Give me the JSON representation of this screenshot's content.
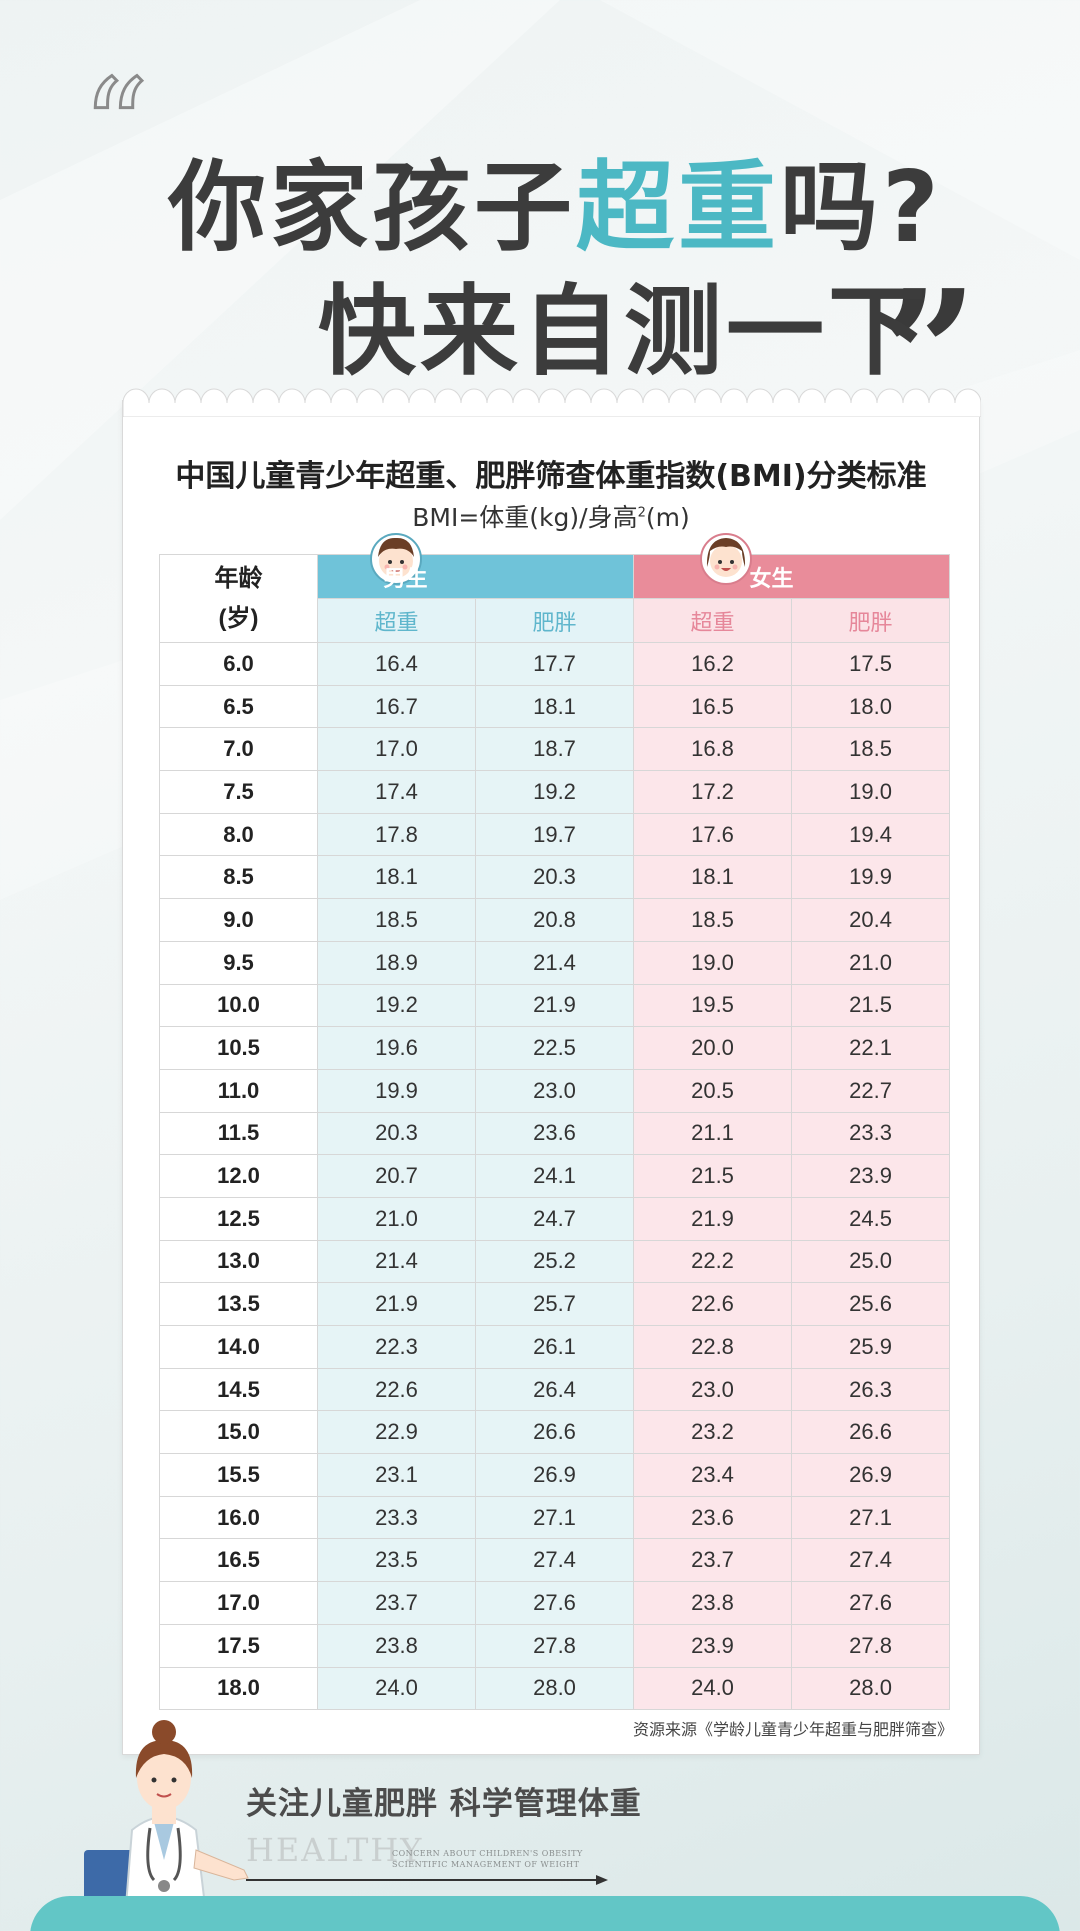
{
  "headline": {
    "line1_pre": "你家孩子",
    "line1_accent": "超重",
    "line1_post": "吗?",
    "line2": "快来自测一下"
  },
  "quotes": {
    "open": "“",
    "close": "”"
  },
  "card": {
    "title": "中国儿童青少年超重、肥胖筛查体重指数(BMI)分类标准",
    "formula_pre": "BMI=体重(kg)/身高",
    "formula_sup": "2",
    "formula_post": "(m)"
  },
  "table": {
    "age_header_line1": "年龄",
    "age_header_line2": "(岁)",
    "boy_header": "男生",
    "girl_header": "女生",
    "boy_sub": [
      "超重",
      "肥胖"
    ],
    "girl_sub": [
      "超重",
      "肥胖"
    ],
    "rows": [
      [
        "6.0",
        "16.4",
        "17.7",
        "16.2",
        "17.5"
      ],
      [
        "6.5",
        "16.7",
        "18.1",
        "16.5",
        "18.0"
      ],
      [
        "7.0",
        "17.0",
        "18.7",
        "16.8",
        "18.5"
      ],
      [
        "7.5",
        "17.4",
        "19.2",
        "17.2",
        "19.0"
      ],
      [
        "8.0",
        "17.8",
        "19.7",
        "17.6",
        "19.4"
      ],
      [
        "8.5",
        "18.1",
        "20.3",
        "18.1",
        "19.9"
      ],
      [
        "9.0",
        "18.5",
        "20.8",
        "18.5",
        "20.4"
      ],
      [
        "9.5",
        "18.9",
        "21.4",
        "19.0",
        "21.0"
      ],
      [
        "10.0",
        "19.2",
        "21.9",
        "19.5",
        "21.5"
      ],
      [
        "10.5",
        "19.6",
        "22.5",
        "20.0",
        "22.1"
      ],
      [
        "11.0",
        "19.9",
        "23.0",
        "20.5",
        "22.7"
      ],
      [
        "11.5",
        "20.3",
        "23.6",
        "21.1",
        "23.3"
      ],
      [
        "12.0",
        "20.7",
        "24.1",
        "21.5",
        "23.9"
      ],
      [
        "12.5",
        "21.0",
        "24.7",
        "21.9",
        "24.5"
      ],
      [
        "13.0",
        "21.4",
        "25.2",
        "22.2",
        "25.0"
      ],
      [
        "13.5",
        "21.9",
        "25.7",
        "22.6",
        "25.6"
      ],
      [
        "14.0",
        "22.3",
        "26.1",
        "22.8",
        "25.9"
      ],
      [
        "14.5",
        "22.6",
        "26.4",
        "23.0",
        "26.3"
      ],
      [
        "15.0",
        "22.9",
        "26.6",
        "23.2",
        "26.6"
      ],
      [
        "15.5",
        "23.1",
        "26.9",
        "23.4",
        "26.9"
      ],
      [
        "16.0",
        "23.3",
        "27.1",
        "23.6",
        "27.1"
      ],
      [
        "16.5",
        "23.5",
        "27.4",
        "23.7",
        "27.4"
      ],
      [
        "17.0",
        "23.7",
        "27.6",
        "23.8",
        "27.6"
      ],
      [
        "17.5",
        "23.8",
        "27.8",
        "23.9",
        "27.8"
      ],
      [
        "18.0",
        "24.0",
        "28.0",
        "24.0",
        "28.0"
      ]
    ]
  },
  "source": "资源来源《学龄儿童青少年超重与肥胖筛查》",
  "footer": {
    "slogan": "关注儿童肥胖  科学管理体重",
    "healthy": "HEALTHY",
    "healthy_sub_1": "CONCERN ABOUT CHILDREN'S OBESITY",
    "healthy_sub_2": "SCIENTIFIC MANAGEMENT OF WEIGHT"
  },
  "colors": {
    "accent": "#4cb8c4",
    "boy": "#6fc3d9",
    "girl": "#e98c9a",
    "band": "#62c6c6"
  },
  "icons": [
    "boy-avatar-icon",
    "girl-avatar-icon",
    "doctor-illustration"
  ]
}
